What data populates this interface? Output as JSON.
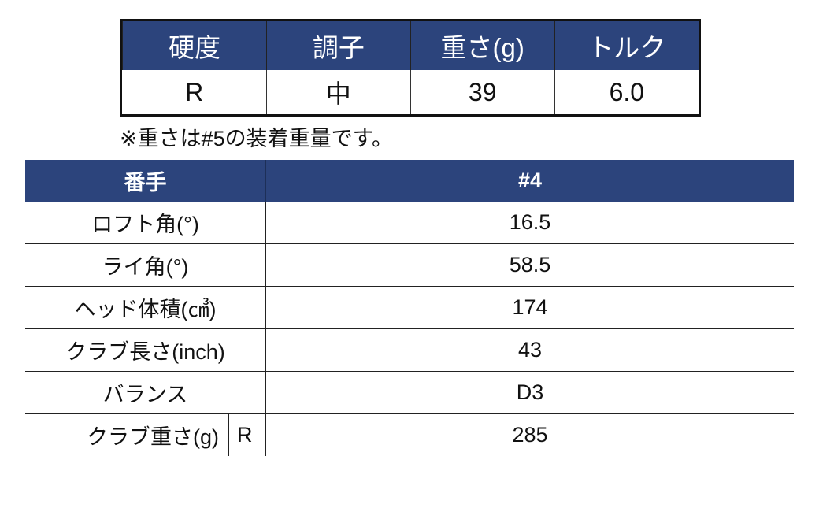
{
  "spec_summary": {
    "headers": [
      "硬度",
      "調子",
      "重さ(g)",
      "トルク"
    ],
    "values": [
      "R",
      "中",
      "39",
      "6.0"
    ]
  },
  "note": "※重さは#5の装着重量です。",
  "spec_table": {
    "header": {
      "label": "番手",
      "value": "#4"
    },
    "rows": [
      {
        "label": "ロフト角(°)",
        "value": "16.5"
      },
      {
        "label": "ライ角(°)",
        "value": "58.5"
      },
      {
        "label": "ヘッド体積(㎤)",
        "value": "174"
      },
      {
        "label": "クラブ長さ(inch)",
        "value": "43"
      },
      {
        "label": "バランス",
        "value": "D3"
      },
      {
        "label": "クラブ重さ(g)",
        "sub": "R",
        "value": "285"
      }
    ]
  },
  "colors": {
    "header_bg": "#2c447c",
    "header_text": "#ffffff"
  }
}
